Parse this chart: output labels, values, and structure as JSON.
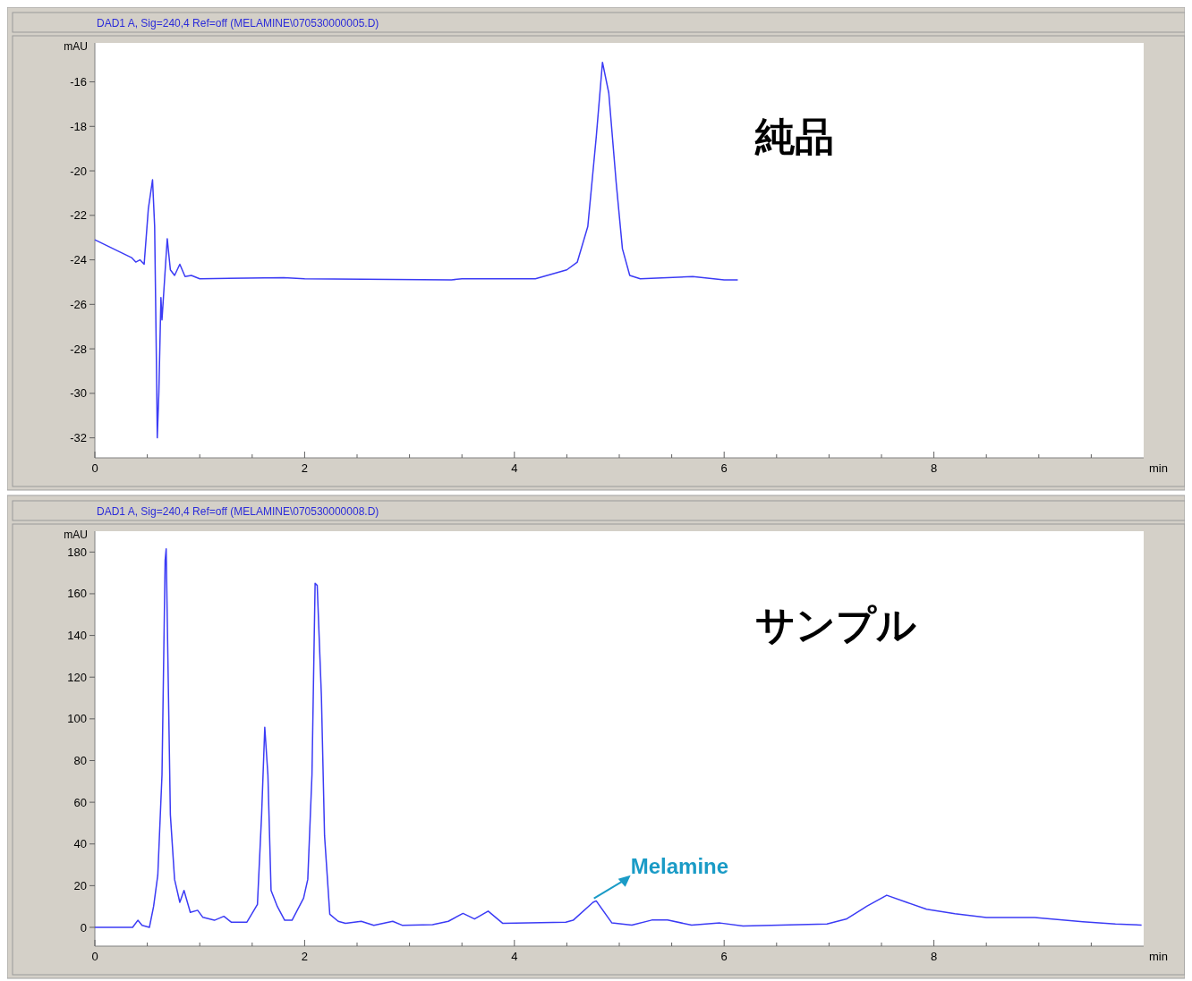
{
  "chart_data": [
    {
      "type": "line",
      "title": "DAD1 A, Sig=240,4 Ref=off (MELAMINE\\070530000005.D)",
      "xlabel": "min",
      "ylabel": "mAU",
      "annotations": [
        "純品"
      ],
      "xlim": [
        0,
        10
      ],
      "ylim": [
        -32.9,
        -14.25
      ],
      "xticks": [
        0,
        {
          "value": 0.5,
          "label": null
        },
        {
          "value": 1,
          "label": null
        },
        {
          "value": 1.5,
          "label": null
        },
        2,
        {
          "value": 2.5,
          "label": null
        },
        {
          "value": 3,
          "label": null
        },
        {
          "value": 3.5,
          "label": null
        },
        4,
        {
          "value": 4.5,
          "label": null
        },
        {
          "value": 5,
          "label": null
        },
        {
          "value": 5.5,
          "label": null
        },
        6,
        {
          "value": 6.5,
          "label": null
        },
        {
          "value": 7,
          "label": null
        },
        {
          "value": 7.5,
          "label": null
        },
        8,
        {
          "value": 8.5,
          "label": null
        },
        {
          "value": 9,
          "label": null
        },
        {
          "value": 9.5,
          "label": null
        }
      ],
      "yticks": [
        -32,
        -30,
        -28,
        -26,
        -24,
        -22,
        -20,
        -18,
        -16
      ],
      "series": [
        {
          "color": "#3b3bf5",
          "x": [
            0,
            0.35,
            0.39,
            0.43,
            0.47,
            0.51,
            0.55,
            0.57,
            0.59,
            0.595,
            0.61,
            0.63,
            0.64,
            0.67,
            0.69,
            0.72,
            0.76,
            0.81,
            0.86,
            0.92,
            1.0,
            1.8,
            2.0,
            3.4,
            3.5,
            4.2,
            4.5,
            4.6,
            4.7,
            4.78,
            4.84,
            4.9,
            4.97,
            5.03,
            5.1,
            5.2,
            5.7,
            6.0,
            6.13
          ],
          "values": [
            -23.1,
            -23.9,
            -24.1,
            -24.0,
            -24.2,
            -21.7,
            -20.4,
            -22.5,
            -29.7,
            -32.0,
            -30.0,
            -25.7,
            -26.7,
            -24.5,
            -23.05,
            -24.45,
            -24.7,
            -24.2,
            -24.75,
            -24.7,
            -24.85,
            -24.8,
            -24.85,
            -24.9,
            -24.85,
            -24.85,
            -24.45,
            -24.1,
            -22.5,
            -18.5,
            -15.12,
            -16.5,
            -20.5,
            -23.5,
            -24.7,
            -24.85,
            -24.75,
            -24.9,
            -24.9
          ]
        }
      ]
    },
    {
      "type": "line",
      "title": "DAD1 A, Sig=240,4 Ref=off (MELAMINE\\070530000008.D)",
      "xlabel": "min",
      "ylabel": "mAU",
      "annotations": [
        "サンプル",
        {
          "text": "Melamine",
          "x": 4.75,
          "y": 13
        }
      ],
      "xlim": [
        0,
        10
      ],
      "ylim": [
        -9,
        190
      ],
      "xticks": [
        0,
        {
          "value": 0.5,
          "label": null
        },
        {
          "value": 1,
          "label": null
        },
        {
          "value": 1.5,
          "label": null
        },
        2,
        {
          "value": 2.5,
          "label": null
        },
        {
          "value": 3,
          "label": null
        },
        {
          "value": 3.5,
          "label": null
        },
        4,
        {
          "value": 4.5,
          "label": null
        },
        {
          "value": 5,
          "label": null
        },
        {
          "value": 5.5,
          "label": null
        },
        6,
        {
          "value": 6.5,
          "label": null
        },
        {
          "value": 7,
          "label": null
        },
        {
          "value": 7.5,
          "label": null
        },
        8,
        {
          "value": 8.5,
          "label": null
        },
        {
          "value": 9,
          "label": null
        },
        {
          "value": 9.5,
          "label": null
        }
      ],
      "yticks": [
        0,
        20,
        40,
        60,
        80,
        100,
        120,
        140,
        160,
        180
      ],
      "series": [
        {
          "color": "#3b3bf5",
          "x": [
            0,
            0.36,
            0.41,
            0.45,
            0.52,
            0.56,
            0.6,
            0.64,
            0.67,
            0.68,
            0.69,
            0.72,
            0.76,
            0.81,
            0.85,
            0.91,
            0.98,
            1.03,
            1.14,
            1.23,
            1.3,
            1.45,
            1.55,
            1.59,
            1.62,
            1.65,
            1.68,
            1.74,
            1.81,
            1.88,
            1.99,
            2.03,
            2.07,
            2.1,
            2.12,
            2.16,
            2.19,
            2.24,
            2.32,
            2.39,
            2.54,
            2.66,
            2.84,
            2.93,
            3.22,
            3.37,
            3.51,
            3.62,
            3.75,
            3.89,
            4.49,
            4.56,
            4.75,
            4.78,
            4.93,
            5.12,
            5.31,
            5.46,
            5.69,
            5.96,
            6.18,
            6.98,
            7.17,
            7.36,
            7.55,
            7.74,
            7.93,
            8.2,
            8.5,
            8.96,
            9.42,
            9.73,
            9.98
          ],
          "values": [
            0,
            0,
            3.4,
            1,
            0,
            10,
            25,
            73,
            176,
            181.5,
            149,
            54,
            23,
            12,
            17.7,
            7.2,
            8.2,
            4.8,
            3.4,
            5.3,
            2.5,
            2.5,
            11,
            54,
            96,
            73,
            17.7,
            10,
            3.4,
            3.4,
            14,
            23,
            73,
            165,
            164,
            111,
            44,
            6.3,
            2.9,
            1.9,
            2.9,
            1,
            2.9,
            1,
            1.3,
            2.9,
            6.7,
            4,
            7.8,
            1.9,
            2.5,
            3.4,
            12,
            12.7,
            2.1,
            1.1,
            3.5,
            3.5,
            1.1,
            2.1,
            0.6,
            1.6,
            4.1,
            10.1,
            15.4,
            12,
            8.7,
            6.5,
            4.7,
            4.7,
            2.7,
            1.6,
            1.1
          ]
        }
      ]
    }
  ]
}
